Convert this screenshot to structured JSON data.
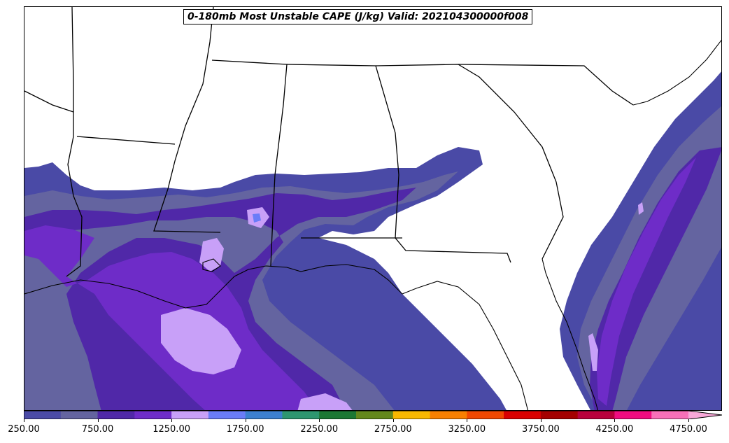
{
  "title": "0-180mb Most Unstable CAPE (J/kg) Valid: 202104300000f008",
  "colorbar": {
    "levels": [
      250,
      500,
      750,
      1000,
      1250,
      1500,
      1750,
      2000,
      2250,
      2500,
      2750,
      3000,
      3250,
      3500,
      3750,
      4000,
      4250,
      4500,
      4750,
      5000
    ],
    "colors": [
      "#4a4aa6",
      "#6464a0",
      "#5028a8",
      "#6e2cc8",
      "#c8a0f8",
      "#6a7cf8",
      "#3c80d0",
      "#2e9670",
      "#1c7834",
      "#64881c",
      "#f8b800",
      "#f88000",
      "#f04800",
      "#d80000",
      "#a40000",
      "#b8003c",
      "#f00c80",
      "#f870b8"
    ],
    "extend_color": "#f8a8d8",
    "tick_labels": [
      "250.00",
      "750.00",
      "1250.00",
      "1750.00",
      "2250.00",
      "2750.00",
      "3250.00",
      "3750.00",
      "4250.00",
      "4750.00"
    ]
  }
}
